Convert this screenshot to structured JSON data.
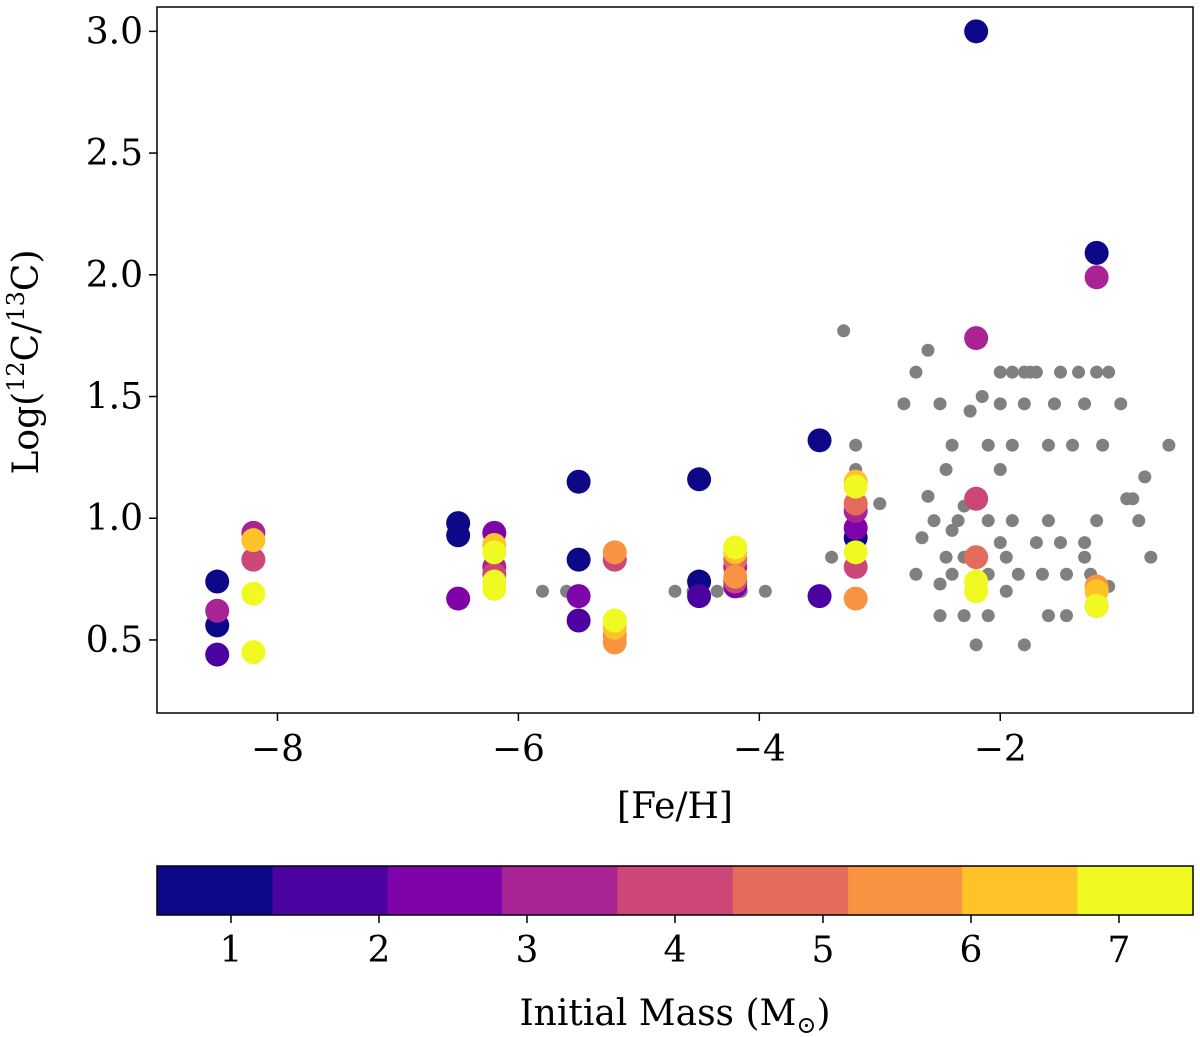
{
  "chart_data": {
    "type": "scatter",
    "xlim": [
      -9.0,
      -0.4
    ],
    "ylim": [
      0.2,
      3.1
    ],
    "xticks": [
      {
        "value": -8,
        "label": "−8"
      },
      {
        "value": -6,
        "label": "−6"
      },
      {
        "value": -4,
        "label": "−4"
      },
      {
        "value": -2,
        "label": "−2"
      }
    ],
    "yticks": [
      {
        "value": 0.5,
        "label": "0.5"
      },
      {
        "value": 1.0,
        "label": "1.0"
      },
      {
        "value": 1.5,
        "label": "1.5"
      },
      {
        "value": 2.0,
        "label": "2.0"
      },
      {
        "value": 2.5,
        "label": "2.5"
      },
      {
        "value": 3.0,
        "label": "3.0"
      }
    ],
    "xlabel": "[Fe/H]",
    "ylabel_parts": {
      "pre": "Log(",
      "sup1": "12",
      "mid": "C/",
      "sup2": "13",
      "post": "C)"
    },
    "grid": false,
    "observed_color": "#808080",
    "observed": [
      [
        -3.3,
        1.77
      ],
      [
        -3.4,
        0.84
      ],
      [
        -3.2,
        1.3
      ],
      [
        -3.2,
        1.2
      ],
      [
        -3.0,
        1.06
      ],
      [
        -2.8,
        1.47
      ],
      [
        -2.7,
        1.6
      ],
      [
        -2.6,
        1.69
      ],
      [
        -2.6,
        1.09
      ],
      [
        -2.7,
        0.77
      ],
      [
        -2.65,
        0.92
      ],
      [
        -2.5,
        0.6
      ],
      [
        -2.5,
        0.73
      ],
      [
        -2.45,
        1.2
      ],
      [
        -2.4,
        1.3
      ],
      [
        -2.35,
        0.99
      ],
      [
        -2.4,
        0.95
      ],
      [
        -2.3,
        1.05
      ],
      [
        -2.3,
        0.84
      ],
      [
        -2.3,
        0.6
      ],
      [
        -2.25,
        1.44
      ],
      [
        -2.2,
        1.1
      ],
      [
        -2.2,
        0.7
      ],
      [
        -2.2,
        0.48
      ],
      [
        -2.15,
        1.5
      ],
      [
        -2.1,
        1.3
      ],
      [
        -2.1,
        0.99
      ],
      [
        -2.1,
        0.77
      ],
      [
        -2.0,
        1.6
      ],
      [
        -2.0,
        0.9
      ],
      [
        -1.95,
        0.7
      ],
      [
        -1.9,
        1.6
      ],
      [
        -1.9,
        0.99
      ],
      [
        -1.85,
        0.77
      ],
      [
        -1.8,
        0.48
      ],
      [
        -1.75,
        1.6
      ],
      [
        -1.7,
        1.6
      ],
      [
        -1.7,
        0.9
      ],
      [
        -1.65,
        0.77
      ],
      [
        -1.6,
        1.3
      ],
      [
        -1.55,
        1.47
      ],
      [
        -1.5,
        1.6
      ],
      [
        -1.5,
        0.9
      ],
      [
        -1.45,
        0.77
      ],
      [
        -1.4,
        1.3
      ],
      [
        -1.35,
        1.6
      ],
      [
        -1.3,
        1.47
      ],
      [
        -1.3,
        0.9
      ],
      [
        -1.25,
        0.77
      ],
      [
        -1.2,
        1.6
      ],
      [
        -1.15,
        1.3
      ],
      [
        -1.1,
        1.6
      ],
      [
        -1.1,
        0.72
      ],
      [
        -1.0,
        1.47
      ],
      [
        -0.95,
        1.08
      ],
      [
        -0.9,
        1.08
      ],
      [
        -0.8,
        1.17
      ],
      [
        -0.85,
        0.99
      ],
      [
        -0.75,
        0.84
      ],
      [
        -0.6,
        1.3
      ],
      [
        -2.0,
        1.47
      ],
      [
        -1.9,
        1.3
      ],
      [
        -1.8,
        1.47
      ],
      [
        -2.4,
        0.77
      ],
      [
        -1.6,
        0.99
      ],
      [
        -1.3,
        0.84
      ],
      [
        -1.8,
        1.6
      ],
      [
        -2.5,
        1.47
      ],
      [
        -1.2,
        0.99
      ],
      [
        -2.0,
        1.2
      ],
      [
        -1.6,
        0.6
      ],
      [
        -1.95,
        0.84
      ],
      [
        -2.45,
        0.84
      ],
      [
        -2.55,
        0.99
      ],
      [
        -1.45,
        0.6
      ],
      [
        -2.1,
        0.6
      ],
      [
        -5.8,
        0.7
      ],
      [
        -5.6,
        0.7
      ],
      [
        -4.7,
        0.7
      ],
      [
        -4.55,
        0.7
      ],
      [
        -4.35,
        0.7
      ],
      [
        -4.15,
        0.7
      ],
      [
        -3.95,
        0.7
      ]
    ],
    "series": [
      {
        "color": "#0d0887",
        "points": [
          [
            -8.5,
            0.74
          ],
          [
            -8.5,
            0.56
          ],
          [
            -6.5,
            0.98
          ],
          [
            -6.5,
            0.93
          ],
          [
            -5.5,
            1.15
          ],
          [
            -5.5,
            0.83
          ],
          [
            -4.5,
            1.16
          ],
          [
            -4.5,
            0.74
          ],
          [
            -3.5,
            1.32
          ],
          [
            -3.2,
            0.92
          ],
          [
            -2.2,
            3.0
          ],
          [
            -1.2,
            2.09
          ]
        ]
      },
      {
        "color": "#4c02a1",
        "points": [
          [
            -8.5,
            0.44
          ],
          [
            -5.5,
            0.58
          ],
          [
            -4.5,
            0.68
          ],
          [
            -3.5,
            0.68
          ]
        ]
      },
      {
        "color": "#7e03a8",
        "points": [
          [
            -6.5,
            0.67
          ],
          [
            -6.2,
            0.94
          ],
          [
            -5.5,
            0.68
          ],
          [
            -4.2,
            0.72
          ],
          [
            -3.2,
            0.96
          ]
        ]
      },
      {
        "color": "#a92395",
        "points": [
          [
            -8.5,
            0.62
          ],
          [
            -8.2,
            0.94
          ],
          [
            -6.2,
            0.8
          ],
          [
            -4.2,
            0.8
          ],
          [
            -3.2,
            1.03
          ],
          [
            -2.2,
            1.74
          ],
          [
            -1.2,
            1.99
          ]
        ]
      },
      {
        "color": "#cc4778",
        "points": [
          [
            -8.2,
            0.83
          ],
          [
            -6.2,
            0.77
          ],
          [
            -5.2,
            0.83
          ],
          [
            -4.2,
            0.74
          ],
          [
            -3.2,
            0.8
          ],
          [
            -2.2,
            1.08
          ],
          [
            -1.2,
            0.64
          ]
        ]
      },
      {
        "color": "#e56b5d",
        "points": [
          [
            -4.2,
            0.83
          ],
          [
            -3.2,
            1.06
          ],
          [
            -2.2,
            0.84
          ]
        ]
      },
      {
        "color": "#f89441",
        "points": [
          [
            -5.2,
            0.86
          ],
          [
            -5.2,
            0.52
          ],
          [
            -5.2,
            0.49
          ],
          [
            -4.2,
            0.76
          ],
          [
            -3.2,
            0.67
          ],
          [
            -1.2,
            0.72
          ]
        ]
      },
      {
        "color": "#fdc328",
        "points": [
          [
            -8.2,
            0.91
          ],
          [
            -6.2,
            0.89
          ],
          [
            -5.2,
            0.55
          ],
          [
            -4.2,
            0.86
          ],
          [
            -3.2,
            1.15
          ],
          [
            -1.2,
            0.7
          ]
        ]
      },
      {
        "color": "#f0f921",
        "points": [
          [
            -8.2,
            0.69
          ],
          [
            -8.2,
            0.45
          ],
          [
            -6.2,
            0.86
          ],
          [
            -6.2,
            0.74
          ],
          [
            -6.2,
            0.71
          ],
          [
            -5.2,
            0.58
          ],
          [
            -4.2,
            0.88
          ],
          [
            -3.2,
            1.13
          ],
          [
            -3.2,
            0.86
          ],
          [
            -2.2,
            0.74
          ],
          [
            -2.2,
            0.7
          ],
          [
            -1.2,
            0.64
          ]
        ]
      }
    ],
    "colorbar": {
      "label_pre": "Initial Mass (M",
      "label_sub": "⊙",
      "label_post": ")",
      "range": [
        0.5,
        7.5
      ],
      "boundaries": [
        0.5,
        1.28,
        2.06,
        2.83,
        3.61,
        4.39,
        5.17,
        5.94,
        6.72,
        7.5
      ],
      "colors": [
        "#0d0887",
        "#4c02a1",
        "#7e03a8",
        "#a92395",
        "#cc4778",
        "#e56b5d",
        "#f89441",
        "#fdc328",
        "#f0f921"
      ],
      "ticks": [
        {
          "value": 1,
          "label": "1"
        },
        {
          "value": 2,
          "label": "2"
        },
        {
          "value": 3,
          "label": "3"
        },
        {
          "value": 4,
          "label": "4"
        },
        {
          "value": 5,
          "label": "5"
        },
        {
          "value": 6,
          "label": "6"
        },
        {
          "value": 7,
          "label": "7"
        }
      ]
    }
  }
}
